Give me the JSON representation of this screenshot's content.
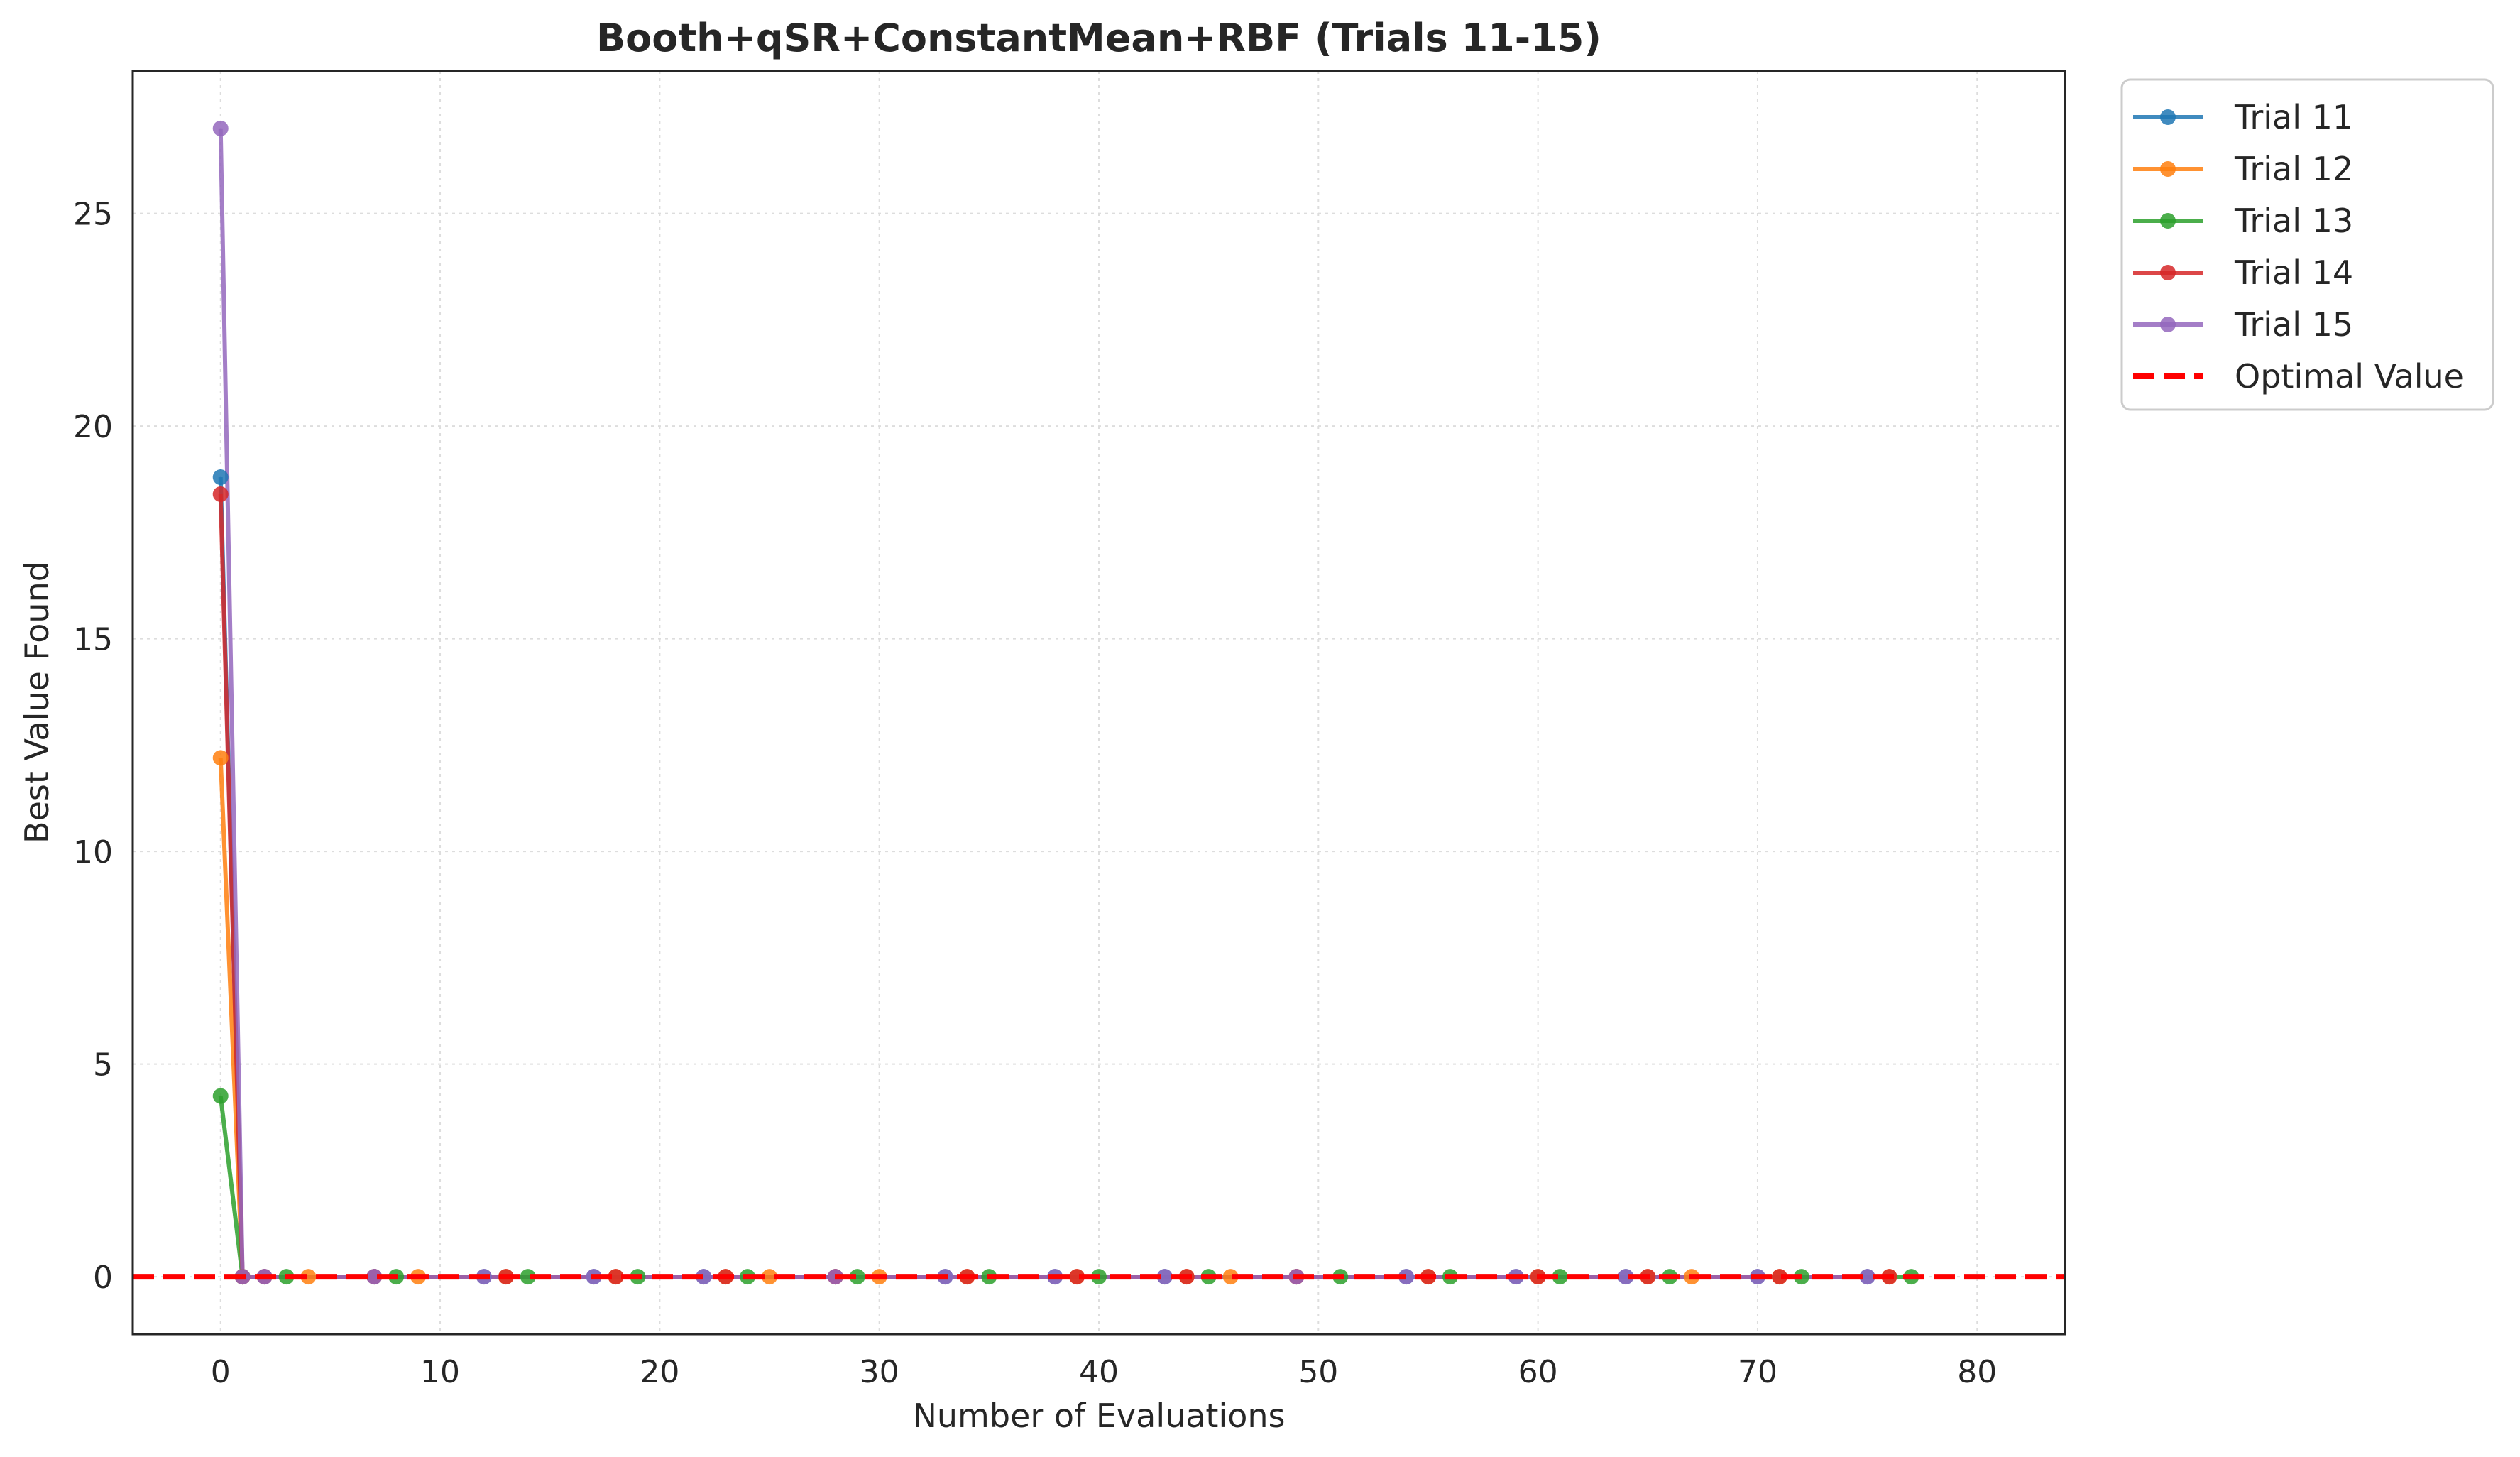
{
  "chart_data": {
    "type": "line",
    "title": "Booth+qSR+ConstantMean+RBF (Trials 11-15)",
    "xlabel": "Number of Evaluations",
    "ylabel": "Best Value Found",
    "xlim": [
      -4,
      84
    ],
    "ylim": [
      -1.35,
      28.35
    ],
    "xticks": [
      0,
      10,
      20,
      30,
      40,
      50,
      60,
      70,
      80
    ],
    "yticks": [
      0,
      5,
      10,
      15,
      20,
      25
    ],
    "grid": true,
    "legend_position": "outside upper right",
    "series": [
      {
        "name": "Trial 11",
        "color": "#1f77b4",
        "points": [
          [
            0,
            18.8
          ],
          [
            1,
            0
          ],
          [
            2,
            0
          ],
          [
            7,
            0
          ],
          [
            12,
            0
          ],
          [
            17,
            0
          ],
          [
            22,
            0
          ],
          [
            28,
            0
          ],
          [
            33,
            0
          ],
          [
            38,
            0
          ],
          [
            43,
            0
          ],
          [
            49,
            0
          ],
          [
            54,
            0
          ],
          [
            59,
            0
          ],
          [
            64,
            0
          ],
          [
            70,
            0
          ],
          [
            75,
            0
          ]
        ]
      },
      {
        "name": "Trial 12",
        "color": "#ff7f0e",
        "points": [
          [
            0,
            12.2
          ],
          [
            1,
            0
          ],
          [
            4,
            0
          ],
          [
            9,
            0
          ],
          [
            13,
            0
          ],
          [
            18,
            0
          ],
          [
            23,
            0
          ],
          [
            25,
            0
          ],
          [
            28,
            0
          ],
          [
            30,
            0
          ],
          [
            34,
            0
          ],
          [
            39,
            0
          ],
          [
            44,
            0
          ],
          [
            46,
            0
          ],
          [
            49,
            0
          ],
          [
            55,
            0
          ],
          [
            60,
            0
          ],
          [
            65,
            0
          ],
          [
            67,
            0
          ],
          [
            71,
            0
          ],
          [
            76,
            0
          ]
        ]
      },
      {
        "name": "Trial 13",
        "color": "#2ca02c",
        "points": [
          [
            0,
            4.25
          ],
          [
            1,
            0
          ],
          [
            3,
            0
          ],
          [
            8,
            0
          ],
          [
            14,
            0
          ],
          [
            19,
            0
          ],
          [
            24,
            0
          ],
          [
            29,
            0
          ],
          [
            35,
            0
          ],
          [
            40,
            0
          ],
          [
            45,
            0
          ],
          [
            51,
            0
          ],
          [
            56,
            0
          ],
          [
            61,
            0
          ],
          [
            66,
            0
          ],
          [
            72,
            0
          ],
          [
            77,
            0
          ]
        ]
      },
      {
        "name": "Trial 14",
        "color": "#d62728",
        "points": [
          [
            0,
            18.4
          ],
          [
            1,
            0
          ],
          [
            2,
            0
          ],
          [
            7,
            0
          ],
          [
            13,
            0
          ],
          [
            18,
            0
          ],
          [
            23,
            0
          ],
          [
            28,
            0
          ],
          [
            34,
            0
          ],
          [
            39,
            0
          ],
          [
            44,
            0
          ],
          [
            49,
            0
          ],
          [
            55,
            0
          ],
          [
            60,
            0
          ],
          [
            65,
            0
          ],
          [
            71,
            0
          ],
          [
            76,
            0
          ]
        ]
      },
      {
        "name": "Trial 15",
        "color": "#9467bd",
        "points": [
          [
            0,
            27.0
          ],
          [
            1,
            0
          ],
          [
            2,
            0
          ],
          [
            7,
            0
          ],
          [
            12,
            0
          ],
          [
            17,
            0
          ],
          [
            22,
            0
          ],
          [
            28,
            0
          ],
          [
            33,
            0
          ],
          [
            38,
            0
          ],
          [
            43,
            0
          ],
          [
            49,
            0
          ],
          [
            54,
            0
          ],
          [
            59,
            0
          ],
          [
            64,
            0
          ],
          [
            70,
            0
          ],
          [
            75,
            0
          ]
        ]
      }
    ],
    "reference_line": {
      "name": "Optimal Value",
      "y": 0,
      "color": "#ff0000",
      "style": "dashed"
    }
  }
}
